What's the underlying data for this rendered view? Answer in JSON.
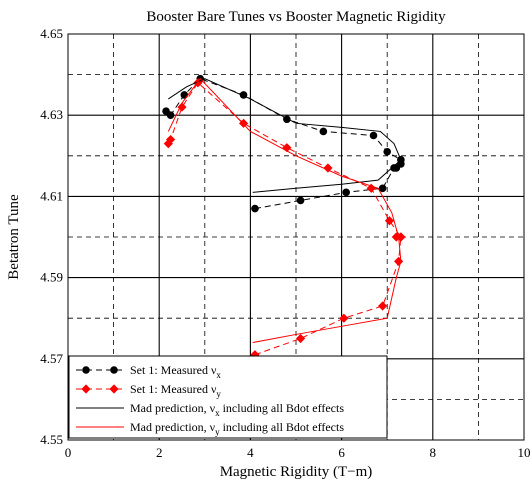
{
  "chart_data": {
    "type": "line",
    "title": "Booster Bare Tunes vs Booster Magnetic Rigidity",
    "xlabel": "Magnetic Rigidity (T−m)",
    "ylabel": "Betatron Tune",
    "xlim": [
      0,
      10
    ],
    "ylim": [
      4.55,
      4.65
    ],
    "xticks": [
      0,
      2,
      4,
      6,
      8,
      10
    ],
    "yticks": [
      "4.55",
      "4.57",
      "4.59",
      "4.61",
      "4.63",
      "4.65"
    ],
    "grid": "solid major grid with dashed minor lines",
    "legend_position": "bottom-left",
    "series": [
      {
        "name": "Set 1: Measured ν",
        "name_sub": "x",
        "color": "#000000",
        "style": "dashed",
        "marker": "circle",
        "x": [
          4.1,
          5.1,
          6.1,
          6.9,
          7.15,
          7.3,
          7.2,
          7.3,
          7.0,
          6.7,
          5.6,
          4.8,
          3.85,
          2.9,
          2.55,
          2.25,
          2.15
        ],
        "y": [
          4.607,
          4.609,
          4.611,
          4.612,
          4.617,
          4.618,
          4.617,
          4.619,
          4.621,
          4.625,
          4.626,
          4.629,
          4.635,
          4.639,
          4.635,
          4.63,
          4.631
        ]
      },
      {
        "name": "Set 1: Measured ν",
        "name_sub": "y",
        "color": "#ff0000",
        "style": "dashed",
        "marker": "diamond",
        "x": [
          4.1,
          5.1,
          6.05,
          6.9,
          7.25,
          7.3,
          7.2,
          7.3,
          7.05,
          6.65,
          5.7,
          4.8,
          3.85,
          2.85,
          2.5,
          2.25,
          2.2
        ],
        "y": [
          4.571,
          4.575,
          4.58,
          4.583,
          4.594,
          4.6,
          4.6,
          4.6,
          4.604,
          4.612,
          4.617,
          4.622,
          4.628,
          4.638,
          4.632,
          4.624,
          4.623
        ]
      },
      {
        "name": "Mad prediction, ν",
        "name_sub": "x",
        "name_suffix": " including all Bdot effects",
        "color": "#000000",
        "style": "solid",
        "marker": "none",
        "x": [
          4.05,
          5.0,
          6.0,
          6.8,
          7.3,
          7.15,
          6.85,
          6.0,
          5.0,
          4.0,
          3.0,
          2.6,
          2.2
        ],
        "y": [
          4.611,
          4.612,
          4.613,
          4.614,
          4.619,
          4.623,
          4.626,
          4.627,
          4.628,
          4.634,
          4.639,
          4.637,
          4.634
        ]
      },
      {
        "name": "Mad prediction, ν",
        "name_sub": "y",
        "name_suffix": " including all Bdot effects",
        "color": "#ff0000",
        "style": "solid",
        "marker": "none",
        "x": [
          4.05,
          5.0,
          6.0,
          7.0,
          7.2,
          7.3,
          7.25,
          7.1,
          6.8,
          6.0,
          5.0,
          4.0,
          2.9,
          2.5,
          2.2
        ],
        "y": [
          4.574,
          4.576,
          4.578,
          4.58,
          4.59,
          4.594,
          4.6,
          4.606,
          4.612,
          4.615,
          4.62,
          4.626,
          4.639,
          4.633,
          4.626
        ]
      }
    ]
  }
}
